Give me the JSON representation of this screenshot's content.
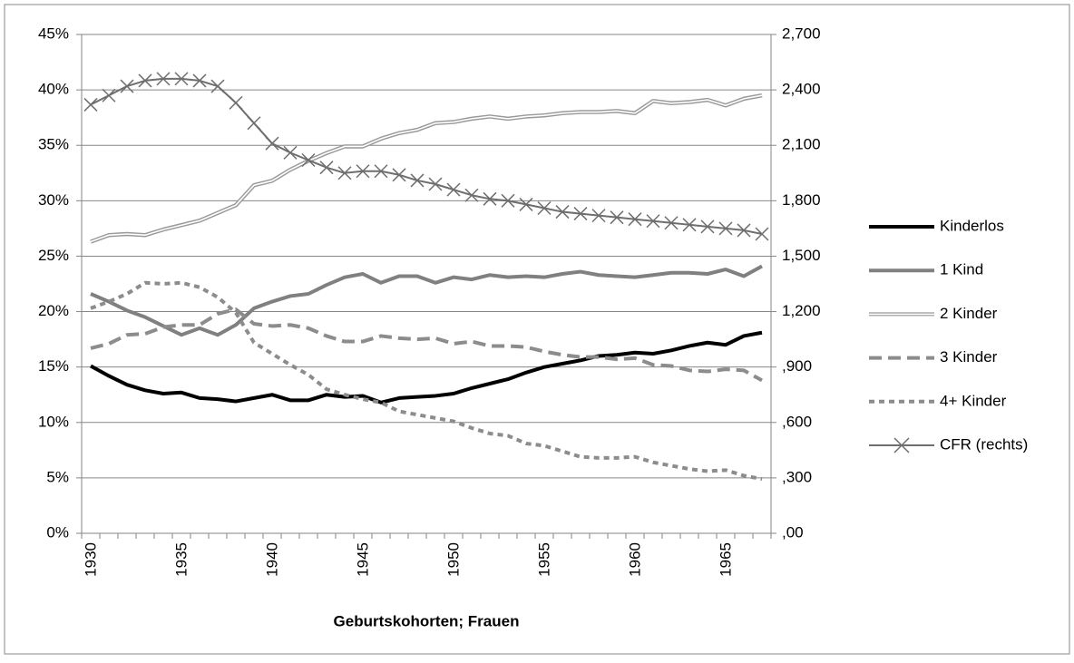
{
  "chart_data": {
    "type": "line",
    "x_label": "Geburtskohorten; Frauen",
    "categories": [
      "1930",
      null,
      null,
      null,
      null,
      "1935",
      null,
      null,
      null,
      null,
      "1940",
      null,
      null,
      null,
      null,
      "1945",
      null,
      null,
      null,
      null,
      "1950",
      null,
      null,
      null,
      null,
      "1955",
      null,
      null,
      null,
      null,
      "1960",
      null,
      null,
      null,
      null,
      "1965",
      null,
      null
    ],
    "ylim": [
      0,
      45
    ],
    "yticks": [
      {
        "value": 0,
        "label": "0%"
      },
      {
        "value": 5,
        "label": "5%"
      },
      {
        "value": 10,
        "label": "10%"
      },
      {
        "value": 15,
        "label": "15%"
      },
      {
        "value": 20,
        "label": "20%"
      },
      {
        "value": 25,
        "label": "25%"
      },
      {
        "value": 30,
        "label": "30%"
      },
      {
        "value": 35,
        "label": "35%"
      },
      {
        "value": 40,
        "label": "40%"
      },
      {
        "value": 45,
        "label": "45%"
      }
    ],
    "y2lim": [
      0,
      2700
    ],
    "y2ticks": [
      {
        "value": 0,
        "label": ",00"
      },
      {
        "value": 300,
        "label": ",300"
      },
      {
        "value": 600,
        "label": ",600"
      },
      {
        "value": 900,
        "label": ",900"
      },
      {
        "value": 1200,
        "label": "1,200"
      },
      {
        "value": 1500,
        "label": "1,500"
      },
      {
        "value": 1800,
        "label": "1,800"
      },
      {
        "value": 2100,
        "label": "2,100"
      },
      {
        "value": 2400,
        "label": "2,400"
      },
      {
        "value": 2700,
        "label": "2,700"
      }
    ],
    "grid": true,
    "legend": "right",
    "series": [
      {
        "name": "Kinderlos",
        "color": "#000000",
        "line_style": "solid",
        "values": [
          15.1,
          14.2,
          13.4,
          12.9,
          12.6,
          12.7,
          12.2,
          12.1,
          11.9,
          12.2,
          12.5,
          12.0,
          12.0,
          12.5,
          12.3,
          12.4,
          11.8,
          12.2,
          12.3,
          12.4,
          12.6,
          13.1,
          13.5,
          13.9,
          14.5,
          15.0,
          15.3,
          15.6,
          16.0,
          16.1,
          16.3,
          16.2,
          16.5,
          16.9,
          17.2,
          17.0,
          17.8,
          18.1
        ]
      },
      {
        "name": "1 Kind",
        "color": "#808080",
        "line_style": "solid",
        "values": [
          21.6,
          20.9,
          20.1,
          19.5,
          18.7,
          17.9,
          18.5,
          17.9,
          18.8,
          20.3,
          20.9,
          21.4,
          21.6,
          22.4,
          23.1,
          23.4,
          22.6,
          23.2,
          23.2,
          22.6,
          23.1,
          22.9,
          23.3,
          23.1,
          23.2,
          23.1,
          23.4,
          23.6,
          23.3,
          23.2,
          23.1,
          23.3,
          23.5,
          23.5,
          23.4,
          23.8,
          23.2,
          24.1
        ]
      },
      {
        "name": "2 Kinder",
        "color": "#999999",
        "line_style": "double",
        "values": [
          26.3,
          26.9,
          27.0,
          26.9,
          27.4,
          27.8,
          28.2,
          28.9,
          29.6,
          31.4,
          31.8,
          32.8,
          33.6,
          34.3,
          34.9,
          34.9,
          35.6,
          36.1,
          36.4,
          37.0,
          37.1,
          37.4,
          37.6,
          37.4,
          37.6,
          37.7,
          37.9,
          38.0,
          38.0,
          38.1,
          37.9,
          39.0,
          38.8,
          38.9,
          39.1,
          38.6,
          39.2,
          39.5
        ]
      },
      {
        "name": "3 Kinder",
        "color": "#8c8c8c",
        "line_style": "long-dash",
        "values": [
          16.7,
          17.1,
          17.9,
          18.0,
          18.6,
          18.8,
          18.8,
          19.8,
          20.2,
          18.9,
          18.7,
          18.8,
          18.5,
          17.8,
          17.3,
          17.3,
          17.8,
          17.6,
          17.5,
          17.6,
          17.1,
          17.3,
          16.9,
          16.9,
          16.8,
          16.4,
          16.1,
          15.9,
          15.9,
          15.7,
          15.8,
          15.2,
          15.1,
          14.7,
          14.6,
          14.8,
          14.7,
          13.8
        ]
      },
      {
        "name": "4+ Kinder",
        "color": "#8c8c8c",
        "line_style": "short-dash",
        "values": [
          20.3,
          20.9,
          21.6,
          22.6,
          22.5,
          22.6,
          22.2,
          21.3,
          19.9,
          17.2,
          16.2,
          15.2,
          14.3,
          13.0,
          12.5,
          12.1,
          11.8,
          11.0,
          10.7,
          10.4,
          10.1,
          9.5,
          9.0,
          8.8,
          8.1,
          7.9,
          7.4,
          6.9,
          6.8,
          6.8,
          6.9,
          6.4,
          6.1,
          5.8,
          5.6,
          5.7,
          5.2,
          4.9
        ]
      },
      {
        "name": "CFR (rechts)",
        "color": "#6e6e6e",
        "line_style": "solid",
        "marker": "x",
        "axis": "y2",
        "values": [
          2320,
          2370,
          2420,
          2450,
          2460,
          2460,
          2450,
          2420,
          2330,
          2220,
          2110,
          2060,
          2020,
          1980,
          1950,
          1960,
          1960,
          1940,
          1910,
          1890,
          1860,
          1830,
          1810,
          1800,
          1780,
          1760,
          1740,
          1730,
          1720,
          1710,
          1700,
          1690,
          1680,
          1670,
          1660,
          1650,
          1640,
          1620
        ]
      }
    ]
  }
}
